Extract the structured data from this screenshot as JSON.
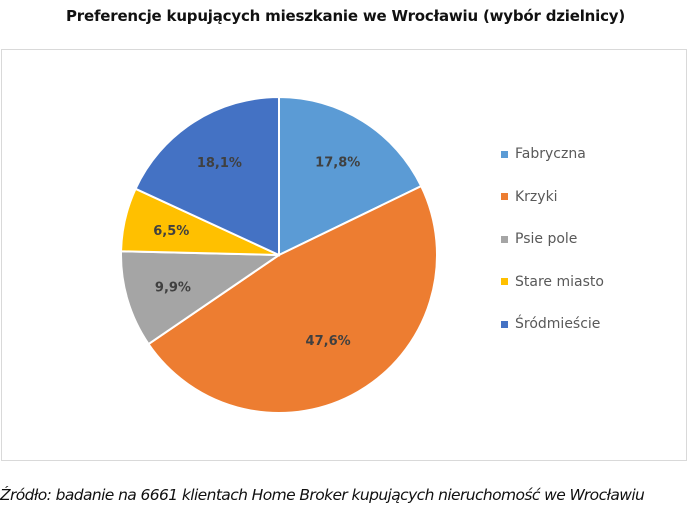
{
  "chart_data": {
    "type": "pie",
    "title": "Preferencje kupujących mieszkanie we Wrocławiu (wybór dzielnicy)",
    "categories": [
      "Fabryczna",
      "Krzyki",
      "Psie pole",
      "Stare miasto",
      "Śródmieście"
    ],
    "values": [
      17.8,
      47.6,
      9.9,
      6.5,
      18.1
    ],
    "labels": [
      "17,8%",
      "47,6%",
      "9,9%",
      "6,5%",
      "18,1%"
    ],
    "colors": [
      "#5B9BD5",
      "#ED7D31",
      "#A5A5A5",
      "#FFC000",
      "#4472C4"
    ],
    "legend_position": "right",
    "start_angle": "12 o'clock, clockwise"
  },
  "title": "Preferencje kupujących mieszkanie we Wrocławiu (wybór dzielnicy)",
  "legend": [
    {
      "label": "Fabryczna",
      "color": "#5B9BD5"
    },
    {
      "label": "Krzyki",
      "color": "#ED7D31"
    },
    {
      "label": "Psie pole",
      "color": "#A5A5A5"
    },
    {
      "label": "Stare miasto",
      "color": "#FFC000"
    },
    {
      "label": "Śródmieście",
      "color": "#4472C4"
    }
  ],
  "source": "Źródło: badanie na 6661 klientach Home Broker kupujących nieruchomość we Wrocławiu"
}
